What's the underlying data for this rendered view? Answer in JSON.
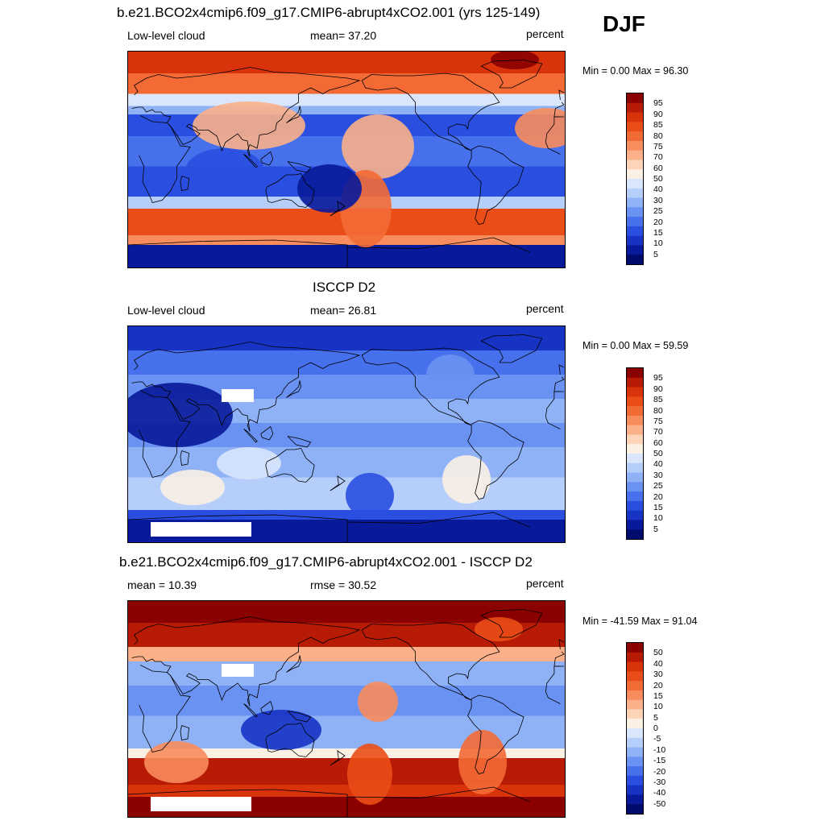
{
  "season_label": "DJF",
  "panels": [
    {
      "title": "b.e21.BCO2x4cmip6.f09_g17.CMIP6-abrupt4xCO2.001 (yrs 125-149)",
      "left_label": "Low-level cloud",
      "center_label": "mean=  37.20",
      "right_label": "percent",
      "range_label": "Min =   0.00 Max =  96.30",
      "scale": "absolute",
      "colorbar_ticks": [
        "95",
        "90",
        "85",
        "80",
        "75",
        "70",
        "60",
        "50",
        "40",
        "30",
        "25",
        "20",
        "15",
        "10",
        "5"
      ]
    },
    {
      "title": "ISCCP D2",
      "left_label": "Low-level cloud",
      "center_label": "mean=  26.81",
      "right_label": "percent",
      "range_label": "Min =   0.00 Max =  59.59",
      "scale": "absolute",
      "colorbar_ticks": [
        "95",
        "90",
        "85",
        "80",
        "75",
        "70",
        "60",
        "50",
        "40",
        "30",
        "25",
        "20",
        "15",
        "10",
        "5"
      ]
    },
    {
      "title": "b.e21.BCO2x4cmip6.f09_g17.CMIP6-abrupt4xCO2.001 - ISCCP D2",
      "left_label": "mean =  10.39",
      "center_label": "rmse =  30.52",
      "right_label": "percent",
      "range_label": "Min = -41.59 Max =  91.04",
      "scale": "difference",
      "colorbar_ticks": [
        "50",
        "40",
        "30",
        "20",
        "15",
        "10",
        "5",
        "0",
        "-5",
        "-10",
        "-15",
        "-20",
        "-30",
        "-40",
        "-50"
      ]
    }
  ],
  "colors": {
    "palette_high_to_low": [
      "#8b0000",
      "#b71a05",
      "#d8330a",
      "#ea4d17",
      "#f36a35",
      "#f88c5c",
      "#fbb089",
      "#fdd4b8",
      "#fbf0e4",
      "#d9e6fb",
      "#b6cefa",
      "#8fb2f7",
      "#6a92f2",
      "#4670ec",
      "#2a4fe0",
      "#1633c4",
      "#081a9a",
      "#000b6c"
    ],
    "missing": "#ffffff",
    "coastline": "#000000"
  }
}
